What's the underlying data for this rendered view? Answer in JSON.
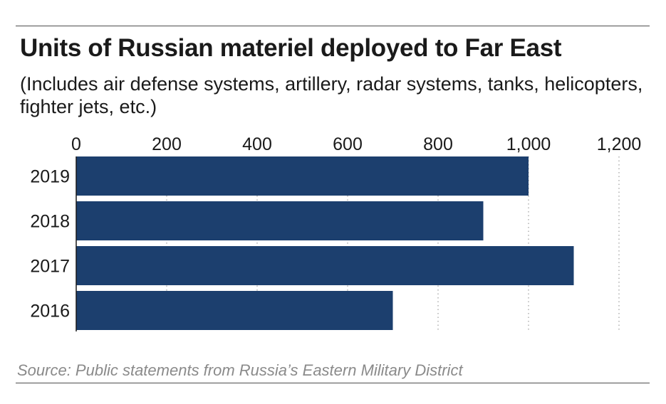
{
  "title": "Units of Russian materiel deployed to Far East",
  "subtitle": "(Includes air defense systems, artillery, radar systems, tanks, helicopters, fighter jets, etc.)",
  "source": "Source: Public statements from Russia’s Eastern Military District",
  "colors": {
    "bar": "#1c3f6e",
    "grid": "#b0b0b0",
    "rule": "#4d4d4d",
    "source_text": "#8a8a8a"
  },
  "chart_data": {
    "type": "bar",
    "orientation": "horizontal",
    "categories": [
      "2019",
      "2018",
      "2017",
      "2016"
    ],
    "values": [
      1000,
      900,
      1100,
      700
    ],
    "xlim": [
      0,
      1200
    ],
    "xticks": [
      0,
      200,
      400,
      600,
      800,
      1000,
      1200
    ],
    "xtick_labels": [
      "0",
      "200",
      "400",
      "600",
      "800",
      "1,000",
      "1,200"
    ],
    "xaxis_position": "top",
    "grid": "vertical dotted",
    "legend": "none"
  }
}
